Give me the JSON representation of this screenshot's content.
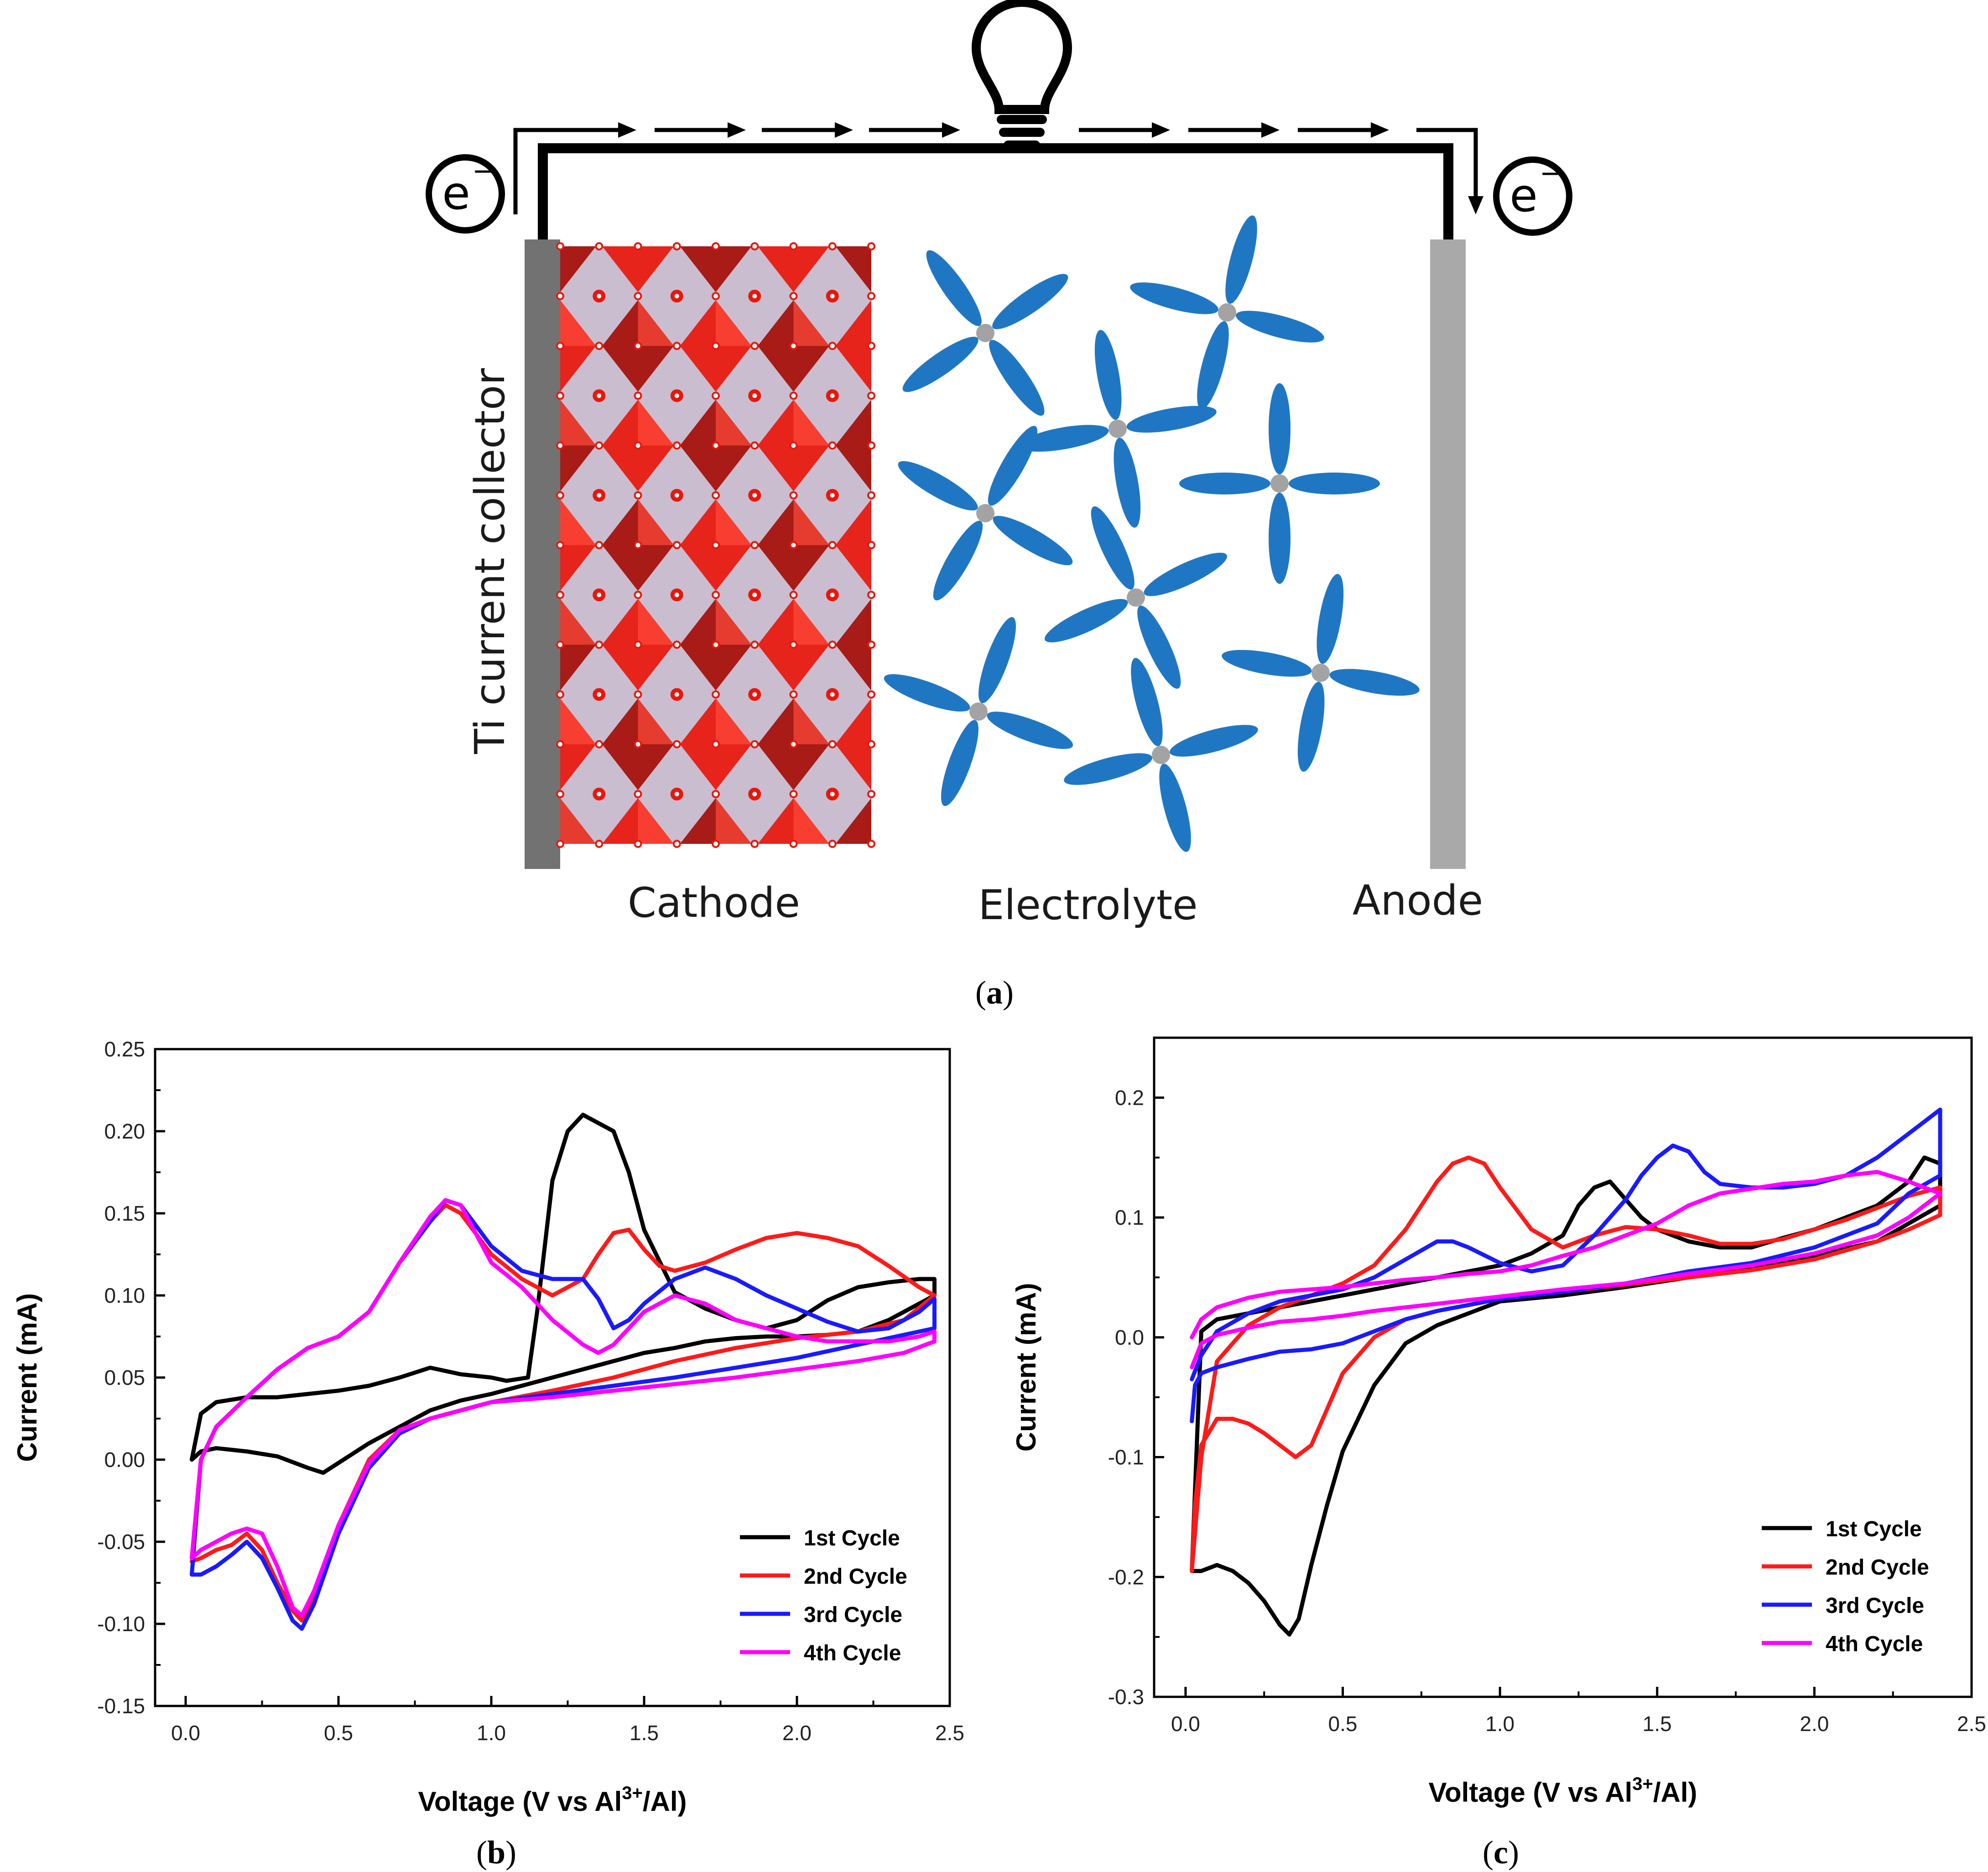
{
  "colors": {
    "black": "#000000",
    "red": "#ff1a1a",
    "blue": "#1a1aff",
    "magenta": "#ff00ff",
    "electrolyte": "#1f77c4",
    "cathode_red": "#e8170c",
    "cathode_dark": "#a50d06",
    "cathode_purple": "#9e86a8",
    "collector": "#727272",
    "anode": "#a9a9a9",
    "hub": "#a3a3a3"
  },
  "schematic": {
    "electron_left": "e",
    "electron_right": "e",
    "electron_charge": "−",
    "collector_label": "Ti current collector",
    "cathode_label": "Cathode",
    "electrolyte_label": "Electrolyte",
    "anode_label": "Anode",
    "bulb_icon": "light-bulb-icon",
    "panel_label": "a"
  },
  "chart_data": [
    {
      "panel_label": "b",
      "type": "line",
      "title": "",
      "xlabel": "Voltage (V vs Al³⁺/Al)",
      "xlabel_main": "Voltage (V vs Al",
      "xlabel_sup": "3+",
      "xlabel_end": "/Al)",
      "ylabel": "Current (mA)",
      "xlim": [
        -0.1,
        2.5
      ],
      "ylim": [
        -0.15,
        0.25
      ],
      "xticks": [
        "0.0",
        "0.5",
        "1.0",
        "1.5",
        "2.0",
        "2.5"
      ],
      "xtick_values": [
        0.0,
        0.5,
        1.0,
        1.5,
        2.0,
        2.5
      ],
      "yticks": [
        "-0.15",
        "-0.10",
        "-0.05",
        "0.00",
        "0.05",
        "0.10",
        "0.15",
        "0.20",
        "0.25"
      ],
      "ytick_values": [
        -0.15,
        -0.1,
        -0.05,
        0.0,
        0.05,
        0.1,
        0.15,
        0.2,
        0.25
      ],
      "legend_position": "bottom-right",
      "series": [
        {
          "name": "1st Cycle",
          "color": "#000000",
          "x": [
            0.02,
            0.05,
            0.1,
            0.2,
            0.3,
            0.4,
            0.45,
            0.5,
            0.6,
            0.7,
            0.8,
            0.9,
            1.0,
            1.1,
            1.2,
            1.3,
            1.4,
            1.5,
            1.6,
            1.7,
            1.8,
            1.9,
            2.0,
            2.1,
            2.2,
            2.3,
            2.4,
            2.45,
            2.45,
            2.4,
            2.3,
            2.2,
            2.1,
            2.0,
            1.9,
            1.8,
            1.7,
            1.6,
            1.5,
            1.45,
            1.4,
            1.35,
            1.3,
            1.25,
            1.2,
            1.15,
            1.12,
            1.05,
            1.0,
            0.9,
            0.8,
            0.7,
            0.6,
            0.5,
            0.4,
            0.3,
            0.2,
            0.1,
            0.05,
            0.02
          ],
          "y": [
            0.0,
            0.005,
            0.007,
            0.005,
            0.002,
            -0.005,
            -0.008,
            -0.002,
            0.01,
            0.02,
            0.03,
            0.036,
            0.04,
            0.045,
            0.05,
            0.055,
            0.06,
            0.065,
            0.068,
            0.072,
            0.074,
            0.075,
            0.075,
            0.076,
            0.078,
            0.085,
            0.095,
            0.1,
            0.11,
            0.11,
            0.108,
            0.105,
            0.097,
            0.085,
            0.08,
            0.085,
            0.092,
            0.102,
            0.14,
            0.175,
            0.2,
            0.205,
            0.21,
            0.2,
            0.17,
            0.09,
            0.05,
            0.048,
            0.05,
            0.052,
            0.056,
            0.05,
            0.045,
            0.042,
            0.04,
            0.038,
            0.038,
            0.035,
            0.028,
            0.0
          ]
        },
        {
          "name": "2nd Cycle",
          "color": "#ff1a1a",
          "x": [
            0.02,
            0.05,
            0.1,
            0.15,
            0.2,
            0.25,
            0.3,
            0.35,
            0.38,
            0.42,
            0.5,
            0.6,
            0.7,
            0.8,
            0.9,
            1.0,
            1.2,
            1.4,
            1.6,
            1.8,
            2.0,
            2.2,
            2.35,
            2.45,
            2.45,
            2.4,
            2.3,
            2.2,
            2.1,
            2.0,
            1.9,
            1.8,
            1.7,
            1.6,
            1.55,
            1.5,
            1.45,
            1.4,
            1.35,
            1.3,
            1.25,
            1.2,
            1.1,
            1.0,
            0.9,
            0.85,
            0.8,
            0.7,
            0.6,
            0.5,
            0.4,
            0.3,
            0.2,
            0.1,
            0.05,
            0.02
          ],
          "y": [
            -0.062,
            -0.06,
            -0.055,
            -0.052,
            -0.045,
            -0.055,
            -0.075,
            -0.092,
            -0.098,
            -0.085,
            -0.04,
            0.0,
            0.018,
            0.025,
            0.03,
            0.035,
            0.042,
            0.05,
            0.06,
            0.068,
            0.074,
            0.078,
            0.085,
            0.1,
            0.1,
            0.105,
            0.118,
            0.13,
            0.135,
            0.138,
            0.135,
            0.128,
            0.12,
            0.115,
            0.118,
            0.128,
            0.14,
            0.138,
            0.125,
            0.11,
            0.105,
            0.1,
            0.11,
            0.125,
            0.15,
            0.155,
            0.145,
            0.12,
            0.09,
            0.075,
            0.068,
            0.055,
            0.038,
            0.02,
            0.0,
            -0.06
          ]
        },
        {
          "name": "3rd Cycle",
          "color": "#1a1aff",
          "x": [
            0.02,
            0.05,
            0.1,
            0.15,
            0.2,
            0.25,
            0.3,
            0.35,
            0.38,
            0.42,
            0.5,
            0.6,
            0.7,
            0.8,
            0.9,
            1.0,
            1.2,
            1.4,
            1.6,
            1.8,
            2.0,
            2.2,
            2.35,
            2.45,
            2.45,
            2.4,
            2.3,
            2.2,
            2.1,
            2.0,
            1.9,
            1.8,
            1.7,
            1.6,
            1.5,
            1.45,
            1.4,
            1.35,
            1.3,
            1.2,
            1.1,
            1.0,
            0.9,
            0.85,
            0.8,
            0.7,
            0.6,
            0.5,
            0.4,
            0.3,
            0.2,
            0.1,
            0.05,
            0.02
          ],
          "y": [
            -0.07,
            -0.07,
            -0.065,
            -0.058,
            -0.05,
            -0.06,
            -0.078,
            -0.098,
            -0.103,
            -0.088,
            -0.045,
            -0.005,
            0.016,
            0.025,
            0.03,
            0.035,
            0.04,
            0.045,
            0.05,
            0.056,
            0.062,
            0.07,
            0.076,
            0.08,
            0.098,
            0.09,
            0.08,
            0.078,
            0.084,
            0.092,
            0.1,
            0.11,
            0.117,
            0.11,
            0.095,
            0.085,
            0.08,
            0.098,
            0.11,
            0.11,
            0.115,
            0.13,
            0.155,
            0.158,
            0.145,
            0.12,
            0.09,
            0.075,
            0.068,
            0.055,
            0.038,
            0.02,
            0.0,
            -0.07
          ]
        },
        {
          "name": "4th Cycle",
          "color": "#ff00ff",
          "x": [
            0.02,
            0.05,
            0.1,
            0.15,
            0.2,
            0.25,
            0.3,
            0.35,
            0.38,
            0.42,
            0.5,
            0.6,
            0.7,
            0.8,
            0.9,
            1.0,
            1.2,
            1.4,
            1.6,
            1.8,
            2.0,
            2.2,
            2.35,
            2.45,
            2.45,
            2.4,
            2.3,
            2.2,
            2.1,
            2.0,
            1.9,
            1.8,
            1.7,
            1.6,
            1.5,
            1.45,
            1.4,
            1.35,
            1.3,
            1.2,
            1.1,
            1.0,
            0.9,
            0.85,
            0.8,
            0.7,
            0.6,
            0.5,
            0.4,
            0.3,
            0.2,
            0.1,
            0.05,
            0.02
          ],
          "y": [
            -0.06,
            -0.055,
            -0.05,
            -0.045,
            -0.042,
            -0.045,
            -0.065,
            -0.09,
            -0.095,
            -0.08,
            -0.04,
            -0.002,
            0.018,
            0.025,
            0.03,
            0.035,
            0.038,
            0.042,
            0.046,
            0.05,
            0.055,
            0.06,
            0.065,
            0.072,
            0.078,
            0.075,
            0.072,
            0.072,
            0.072,
            0.075,
            0.08,
            0.085,
            0.095,
            0.1,
            0.09,
            0.08,
            0.07,
            0.065,
            0.07,
            0.085,
            0.105,
            0.12,
            0.155,
            0.158,
            0.148,
            0.12,
            0.09,
            0.075,
            0.068,
            0.055,
            0.038,
            0.02,
            0.0,
            -0.06
          ]
        }
      ]
    },
    {
      "panel_label": "c",
      "type": "line",
      "title": "",
      "xlabel": "Voltage (V vs Al³⁺/Al)",
      "xlabel_main": "Voltage (V vs Al",
      "xlabel_sup": "3+",
      "xlabel_end": "/Al)",
      "ylabel": "Current (mA)",
      "xlim": [
        -0.1,
        2.5
      ],
      "ylim": [
        -0.3,
        0.25
      ],
      "xticks": [
        "0.0",
        "0.5",
        "1.0",
        "1.5",
        "2.0",
        "2.5"
      ],
      "xtick_values": [
        0.0,
        0.5,
        1.0,
        1.5,
        2.0,
        2.5
      ],
      "yticks": [
        "-0.3",
        "-0.2",
        "-0.1",
        "0.0",
        "0.1",
        "0.2"
      ],
      "ytick_values": [
        -0.3,
        -0.2,
        -0.1,
        0.0,
        0.1,
        0.2
      ],
      "legend_position": "bottom-right",
      "series": [
        {
          "name": "1st Cycle",
          "color": "#000000",
          "x": [
            0.02,
            0.05,
            0.1,
            0.15,
            0.2,
            0.25,
            0.3,
            0.33,
            0.36,
            0.4,
            0.45,
            0.5,
            0.6,
            0.7,
            0.8,
            0.9,
            1.0,
            1.2,
            1.4,
            1.6,
            1.8,
            2.0,
            2.2,
            2.3,
            2.4,
            2.4,
            2.35,
            2.3,
            2.2,
            2.1,
            2.0,
            1.9,
            1.8,
            1.7,
            1.6,
            1.5,
            1.45,
            1.4,
            1.35,
            1.3,
            1.25,
            1.2,
            1.1,
            1.0,
            0.9,
            0.8,
            0.7,
            0.6,
            0.5,
            0.4,
            0.3,
            0.2,
            0.1,
            0.05,
            0.02
          ],
          "y": [
            -0.195,
            -0.195,
            -0.19,
            -0.195,
            -0.205,
            -0.22,
            -0.24,
            -0.248,
            -0.235,
            -0.19,
            -0.14,
            -0.095,
            -0.04,
            -0.005,
            0.01,
            0.02,
            0.03,
            0.035,
            0.042,
            0.05,
            0.058,
            0.068,
            0.08,
            0.095,
            0.11,
            0.145,
            0.15,
            0.13,
            0.11,
            0.1,
            0.09,
            0.083,
            0.075,
            0.075,
            0.08,
            0.09,
            0.1,
            0.115,
            0.13,
            0.125,
            0.11,
            0.085,
            0.07,
            0.06,
            0.055,
            0.05,
            0.045,
            0.04,
            0.035,
            0.03,
            0.025,
            0.02,
            0.015,
            0.005,
            -0.195
          ]
        },
        {
          "name": "2nd Cycle",
          "color": "#ff1a1a",
          "x": [
            0.02,
            0.03,
            0.05,
            0.1,
            0.15,
            0.2,
            0.25,
            0.3,
            0.35,
            0.4,
            0.45,
            0.5,
            0.6,
            0.7,
            0.8,
            0.9,
            1.0,
            1.2,
            1.4,
            1.6,
            1.8,
            2.0,
            2.2,
            2.3,
            2.4,
            2.4,
            2.3,
            2.2,
            2.1,
            2.0,
            1.9,
            1.8,
            1.7,
            1.6,
            1.5,
            1.4,
            1.3,
            1.2,
            1.1,
            1.0,
            0.95,
            0.9,
            0.85,
            0.8,
            0.7,
            0.6,
            0.5,
            0.4,
            0.3,
            0.2,
            0.1,
            0.05,
            0.02
          ],
          "y": [
            -0.195,
            -0.14,
            -0.09,
            -0.068,
            -0.068,
            -0.072,
            -0.08,
            -0.09,
            -0.1,
            -0.09,
            -0.06,
            -0.03,
            0.0,
            0.015,
            0.022,
            0.027,
            0.032,
            0.038,
            0.044,
            0.05,
            0.056,
            0.065,
            0.08,
            0.09,
            0.102,
            0.125,
            0.118,
            0.108,
            0.098,
            0.09,
            0.082,
            0.078,
            0.078,
            0.085,
            0.09,
            0.092,
            0.085,
            0.075,
            0.09,
            0.125,
            0.145,
            0.15,
            0.145,
            0.13,
            0.09,
            0.06,
            0.045,
            0.035,
            0.025,
            0.01,
            -0.02,
            -0.1,
            -0.195
          ]
        },
        {
          "name": "3rd Cycle",
          "color": "#1a1aff",
          "x": [
            0.02,
            0.03,
            0.05,
            0.1,
            0.2,
            0.3,
            0.4,
            0.5,
            0.6,
            0.7,
            0.8,
            0.9,
            1.0,
            1.2,
            1.4,
            1.6,
            1.8,
            2.0,
            2.2,
            2.3,
            2.4,
            2.4,
            2.35,
            2.3,
            2.2,
            2.1,
            2.0,
            1.9,
            1.8,
            1.7,
            1.65,
            1.6,
            1.55,
            1.5,
            1.45,
            1.4,
            1.3,
            1.2,
            1.1,
            1.0,
            0.9,
            0.85,
            0.8,
            0.7,
            0.6,
            0.5,
            0.4,
            0.3,
            0.2,
            0.1,
            0.05,
            0.02
          ],
          "y": [
            -0.07,
            -0.04,
            -0.03,
            -0.025,
            -0.018,
            -0.012,
            -0.01,
            -0.005,
            0.005,
            0.015,
            0.022,
            0.027,
            0.032,
            0.038,
            0.045,
            0.055,
            0.062,
            0.075,
            0.095,
            0.12,
            0.135,
            0.19,
            0.18,
            0.17,
            0.15,
            0.135,
            0.128,
            0.125,
            0.125,
            0.128,
            0.138,
            0.155,
            0.16,
            0.15,
            0.135,
            0.115,
            0.085,
            0.06,
            0.055,
            0.062,
            0.075,
            0.08,
            0.08,
            0.065,
            0.05,
            0.04,
            0.035,
            0.03,
            0.02,
            0.005,
            -0.015,
            -0.035
          ]
        },
        {
          "name": "4th Cycle",
          "color": "#ff00ff",
          "x": [
            0.02,
            0.05,
            0.1,
            0.2,
            0.3,
            0.4,
            0.5,
            0.6,
            0.7,
            0.8,
            0.9,
            1.0,
            1.2,
            1.4,
            1.6,
            1.8,
            2.0,
            2.2,
            2.3,
            2.4,
            2.4,
            2.35,
            2.3,
            2.2,
            2.1,
            2.0,
            1.9,
            1.8,
            1.7,
            1.6,
            1.5,
            1.4,
            1.3,
            1.2,
            1.1,
            1.0,
            0.9,
            0.8,
            0.7,
            0.6,
            0.5,
            0.4,
            0.3,
            0.2,
            0.1,
            0.05,
            0.02
          ],
          "y": [
            -0.025,
            -0.005,
            0.002,
            0.008,
            0.013,
            0.015,
            0.018,
            0.022,
            0.025,
            0.028,
            0.031,
            0.034,
            0.04,
            0.045,
            0.053,
            0.06,
            0.07,
            0.085,
            0.1,
            0.12,
            0.12,
            0.125,
            0.13,
            0.138,
            0.135,
            0.13,
            0.128,
            0.124,
            0.12,
            0.11,
            0.095,
            0.085,
            0.075,
            0.068,
            0.06,
            0.055,
            0.053,
            0.05,
            0.048,
            0.045,
            0.042,
            0.04,
            0.038,
            0.033,
            0.025,
            0.015,
            0.0
          ]
        }
      ]
    }
  ]
}
